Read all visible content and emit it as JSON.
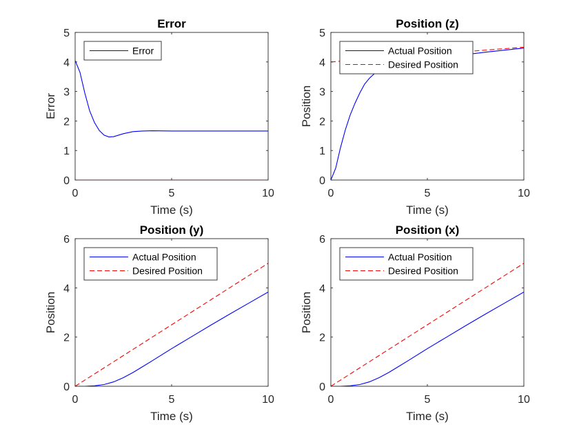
{
  "figure": {
    "background": "#ffffff",
    "colors": {
      "actual": "#0000ff",
      "desired": "#ff0000",
      "error_zero": "#ff0000"
    }
  },
  "chart_data": [
    {
      "type": "line",
      "title": "Error",
      "xlabel": "Time (s)",
      "ylabel": "Error",
      "xlim": [
        0,
        10
      ],
      "ylim": [
        0,
        5
      ],
      "xticks": [
        "0",
        "5",
        "10"
      ],
      "yticks": [
        "0",
        "1",
        "2",
        "3",
        "4",
        "5"
      ],
      "legend": "top-left",
      "series": [
        {
          "name": "Error",
          "color": "#0000ff",
          "dash": "solid",
          "x": [
            0,
            0.25,
            0.5,
            0.75,
            1.0,
            1.25,
            1.5,
            1.75,
            2.0,
            2.5,
            3.0,
            3.5,
            4.0,
            5.0,
            6.0,
            8.0,
            10.0
          ],
          "y": [
            4.05,
            3.65,
            2.95,
            2.35,
            1.95,
            1.68,
            1.52,
            1.46,
            1.47,
            1.57,
            1.64,
            1.66,
            1.67,
            1.66,
            1.66,
            1.66,
            1.66
          ]
        },
        {
          "color": "#ff0000",
          "dash": "solid",
          "x": [
            0,
            10
          ],
          "y": [
            0,
            0
          ]
        }
      ]
    },
    {
      "type": "line",
      "title": "Position (z)",
      "xlabel": "Time (s)",
      "ylabel": "Position",
      "xlim": [
        0,
        10
      ],
      "ylim": [
        0,
        5
      ],
      "xticks": [
        "0",
        "5",
        "10"
      ],
      "yticks": [
        "0",
        "1",
        "2",
        "3",
        "4",
        "5"
      ],
      "legend": "top-right",
      "series": [
        {
          "name": "Actual Position",
          "color": "#0000ff",
          "dash": "solid",
          "x": [
            0,
            0.25,
            0.5,
            0.75,
            1.0,
            1.25,
            1.5,
            1.75,
            2.0,
            2.5,
            3.0,
            3.5,
            4.0,
            5.0,
            6.0,
            8.0,
            10.0
          ],
          "y": [
            0,
            0.4,
            1.1,
            1.7,
            2.2,
            2.6,
            2.95,
            3.25,
            3.45,
            3.75,
            3.88,
            3.95,
            4.0,
            4.08,
            4.17,
            4.33,
            4.47
          ]
        },
        {
          "name": "Desired Position",
          "color": "#ff0000",
          "dash": "dashed",
          "x": [
            0,
            10
          ],
          "y": [
            4.0,
            4.5
          ]
        }
      ]
    },
    {
      "type": "line",
      "title": "Position (y)",
      "xlabel": "Time (s)",
      "ylabel": "Position",
      "xlim": [
        0,
        10
      ],
      "ylim": [
        0,
        6
      ],
      "xticks": [
        "0",
        "5",
        "10"
      ],
      "yticks": [
        "0",
        "2",
        "4",
        "6"
      ],
      "legend": "top-left",
      "series": [
        {
          "name": "Actual Position",
          "color": "#0000ff",
          "dash": "solid",
          "x": [
            0,
            0.5,
            1.0,
            1.5,
            2.0,
            2.5,
            3.0,
            3.5,
            4.0,
            5.0,
            6.0,
            7.0,
            8.0,
            9.0,
            10.0
          ],
          "y": [
            0,
            0.0,
            0.02,
            0.07,
            0.18,
            0.35,
            0.56,
            0.8,
            1.04,
            1.53,
            2.0,
            2.47,
            2.93,
            3.38,
            3.83
          ]
        },
        {
          "name": "Desired Position",
          "color": "#ff0000",
          "dash": "dashed",
          "x": [
            0,
            10
          ],
          "y": [
            0,
            5
          ]
        }
      ]
    },
    {
      "type": "line",
      "title": "Position (x)",
      "xlabel": "Time (s)",
      "ylabel": "Position",
      "xlim": [
        0,
        10
      ],
      "ylim": [
        0,
        6
      ],
      "xticks": [
        "0",
        "5",
        "10"
      ],
      "yticks": [
        "0",
        "2",
        "4",
        "6"
      ],
      "legend": "top-left",
      "series": [
        {
          "name": "Actual Position",
          "color": "#0000ff",
          "dash": "solid",
          "x": [
            0,
            0.5,
            1.0,
            1.5,
            2.0,
            2.5,
            3.0,
            3.5,
            4.0,
            5.0,
            6.0,
            7.0,
            8.0,
            9.0,
            10.0
          ],
          "y": [
            0,
            0.0,
            0.02,
            0.07,
            0.18,
            0.35,
            0.56,
            0.8,
            1.04,
            1.53,
            2.0,
            2.47,
            2.93,
            3.38,
            3.83
          ]
        },
        {
          "name": "Desired Position",
          "color": "#ff0000",
          "dash": "dashed",
          "x": [
            0,
            10
          ],
          "y": [
            0,
            5
          ]
        }
      ]
    }
  ]
}
